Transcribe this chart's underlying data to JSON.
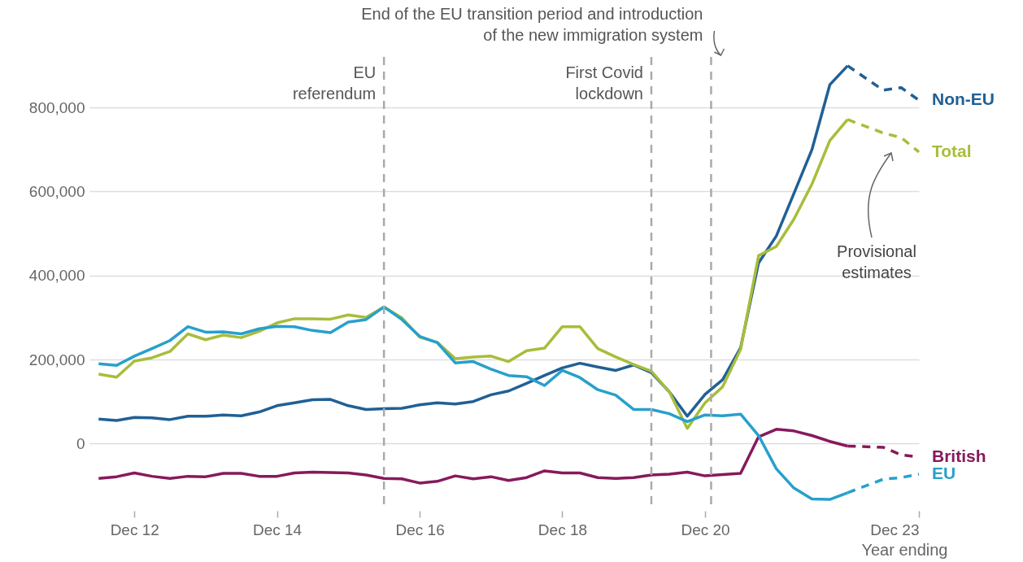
{
  "chart_data": {
    "type": "line",
    "xlabel": "Year ending",
    "x": [
      "2012-06",
      "2012-09",
      "2012-12",
      "2013-03",
      "2013-06",
      "2013-09",
      "2013-12",
      "2014-03",
      "2014-06",
      "2014-09",
      "2014-12",
      "2015-03",
      "2015-06",
      "2015-09",
      "2015-12",
      "2016-03",
      "2016-06",
      "2016-09",
      "2016-12",
      "2017-03",
      "2017-06",
      "2017-09",
      "2017-12",
      "2018-03",
      "2018-06",
      "2018-09",
      "2018-12",
      "2019-03",
      "2019-06",
      "2019-09",
      "2019-12",
      "2020-03",
      "2020-06",
      "2020-09",
      "2020-12",
      "2021-03",
      "2021-06",
      "2021-09",
      "2021-12",
      "2022-03",
      "2022-06",
      "2022-09",
      "2022-12"
    ],
    "series": [
      {
        "color": "#206095",
        "values": [
          58000,
          55000,
          62000,
          61000,
          57000,
          65000,
          65000,
          68000,
          66000,
          75000,
          90000,
          97000,
          104000,
          105000,
          90000,
          81000,
          83000,
          84000,
          92000,
          97000,
          94000,
          100000,
          116000,
          125000,
          143000,
          162000,
          180000,
          191000,
          182000,
          174000,
          187000,
          169000,
          123000,
          65000,
          117000,
          152000,
          228000,
          430000,
          494000,
          595000,
          699000,
          854000,
          899000
        ]
      },
      {
        "color": "#a8bd3a",
        "values": [
          165000,
          158000,
          196000,
          204000,
          219000,
          261000,
          247000,
          258000,
          252000,
          267000,
          287000,
          297000,
          297000,
          296000,
          306000,
          300000,
          325000,
          299000,
          253000,
          241000,
          202000,
          206000,
          208000,
          195000,
          221000,
          227000,
          278000,
          278000,
          226000,
          206000,
          188000,
          172000,
          123000,
          36000,
          97000,
          135000,
          224000,
          447000,
          469000,
          534000,
          617000,
          721000,
          771000
        ]
      },
      {
        "color": "#871a5b",
        "values": [
          -83000,
          -79000,
          -70000,
          -78000,
          -83000,
          -78000,
          -79000,
          -71000,
          -71000,
          -78000,
          -78000,
          -70000,
          -68000,
          -69000,
          -70000,
          -75000,
          -83000,
          -84000,
          -94000,
          -90000,
          -77000,
          -84000,
          -79000,
          -88000,
          -81000,
          -65000,
          -70000,
          -70000,
          -81000,
          -83000,
          -81000,
          -75000,
          -73000,
          -68000,
          -77000,
          -74000,
          -71000,
          16000,
          34000,
          30000,
          19000,
          5000,
          -6000
        ]
      },
      {
        "color": "#27a0cc",
        "values": [
          190000,
          186000,
          208000,
          226000,
          245000,
          278000,
          265000,
          266000,
          261000,
          273000,
          279000,
          278000,
          269000,
          264000,
          289000,
          295000,
          325000,
          295000,
          255000,
          240000,
          192000,
          195000,
          177000,
          162000,
          159000,
          138000,
          174000,
          157000,
          128000,
          115000,
          81000,
          81000,
          71000,
          52000,
          68000,
          66000,
          70000,
          19000,
          -60000,
          -106000,
          -132000,
          -133000,
          -117000
        ]
      },
      {
        "name": "Non-EU",
        "color": "#206095",
        "line_style": "dashed",
        "x": [
          "2022-12",
          "2023-06",
          "2023-09",
          "2023-12"
        ],
        "values": [
          899000,
          841000,
          847000,
          817000
        ]
      },
      {
        "name": "Total",
        "color": "#a8bd3a",
        "line_style": "dashed",
        "x": [
          "2022-12",
          "2023-06",
          "2023-09",
          "2023-12"
        ],
        "values": [
          771000,
          739000,
          728000,
          694000
        ]
      },
      {
        "name": "British",
        "color": "#871a5b",
        "line_style": "dashed",
        "x": [
          "2022-12",
          "2023-06",
          "2023-09",
          "2023-12"
        ],
        "values": [
          -6000,
          -9000,
          -27000,
          -32000
        ]
      },
      {
        "name": "EU",
        "color": "#27a0cc",
        "line_style": "dashed",
        "x": [
          "2022-12",
          "2023-06",
          "2023-09",
          "2023-12"
        ],
        "values": [
          -117000,
          -85000,
          -81000,
          -73000
        ]
      }
    ],
    "xlim": [
      "2012-04-15",
      "2023-12"
    ],
    "xticks": [
      {
        "value": "2012-12",
        "label": "Dec 12"
      },
      {
        "value": "2014-12",
        "label": "Dec 14"
      },
      {
        "value": "2016-12",
        "label": "Dec 16"
      },
      {
        "value": "2018-12",
        "label": "Dec 18"
      },
      {
        "value": "2020-12",
        "label": "Dec 20"
      },
      {
        "value": "2023-12",
        "label": "Dec 23"
      }
    ],
    "ylim": [
      -160000,
      920000
    ],
    "yticks": [
      0,
      {
        "value": 200000,
        "label": "200,000"
      },
      {
        "value": 400000,
        "label": "400,000"
      },
      {
        "value": 600000,
        "label": "600,000"
      },
      {
        "value": 800000,
        "label": "800,000"
      }
    ],
    "grid": "y",
    "ref_lines": [
      {
        "axis": "x",
        "value": "2016-06",
        "label": "EU\nreferendum",
        "color": "#aaaaaa",
        "line_style": "dashed"
      },
      {
        "axis": "x",
        "value": "2020-03",
        "label": "First Covid\nlockdown",
        "color": "#aaaaaa",
        "line_style": "dashed"
      },
      {
        "axis": "x",
        "value": "2021-01",
        "label": "End of the EU transition period and introduction\nof the new immigration system",
        "color": "#aaaaaa",
        "line_style": "dashed"
      }
    ],
    "annotations": [
      "Provisional\nestimates"
    ]
  }
}
